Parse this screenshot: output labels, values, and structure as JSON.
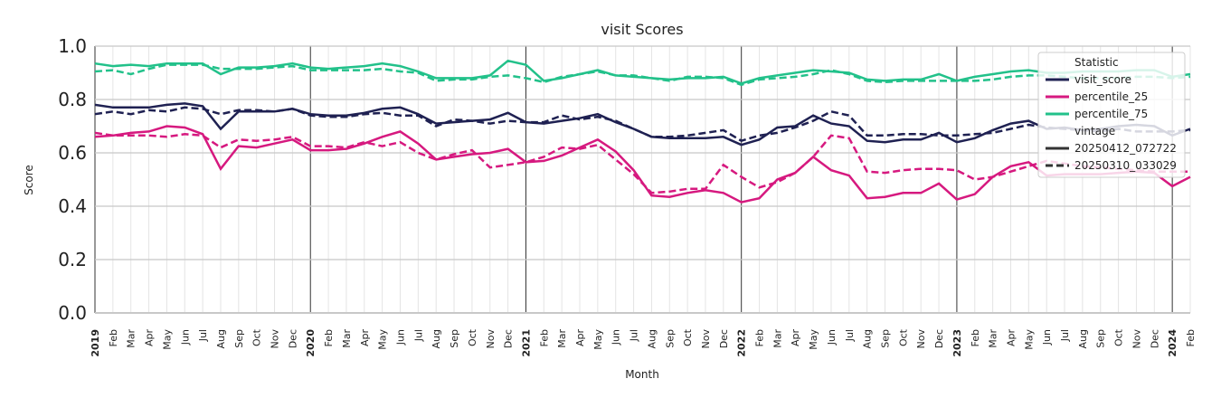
{
  "chart_data": {
    "type": "line",
    "title": "visit Scores",
    "x_label": "Month",
    "y_label": "Score",
    "categories": [
      "2019",
      "Feb",
      "Mar",
      "Apr",
      "May",
      "Jun",
      "Jul",
      "Aug",
      "Sep",
      "Oct",
      "Nov",
      "Dec",
      "2020",
      "Feb",
      "Mar",
      "Apr",
      "May",
      "Jun",
      "Jul",
      "Aug",
      "Sep",
      "Oct",
      "Nov",
      "Dec",
      "2021",
      "Feb",
      "Mar",
      "Apr",
      "May",
      "Jun",
      "Jul",
      "Aug",
      "Sep",
      "Oct",
      "Nov",
      "Dec",
      "2022",
      "Feb",
      "Mar",
      "Apr",
      "May",
      "Jun",
      "Jul",
      "Aug",
      "Sep",
      "Oct",
      "Nov",
      "Dec",
      "2023",
      "Feb",
      "Mar",
      "Apr",
      "May",
      "Jun",
      "Jul",
      "Aug",
      "Sep",
      "Oct",
      "Nov",
      "Dec",
      "2024",
      "Feb"
    ],
    "ylim": [
      0,
      1
    ],
    "yticks": [
      {
        "value": 0,
        "label": "0.0"
      },
      {
        "value": 0.2,
        "label": "0.2"
      },
      {
        "value": 0.4,
        "label": "0.4"
      },
      {
        "value": 0.6,
        "label": "0.6"
      },
      {
        "value": 0.8,
        "label": "0.8"
      },
      {
        "value": 1,
        "label": "1.0"
      }
    ],
    "grid": true,
    "legend": {
      "position": "upper right",
      "statistic_title": "Statistic",
      "vintage_title": "vintage"
    },
    "statistics": [
      {
        "name": "visit_score",
        "color": "#1f2152"
      },
      {
        "name": "percentile_25",
        "color": "#d6197f"
      },
      {
        "name": "percentile_75",
        "color": "#22c18a"
      }
    ],
    "vintages": [
      {
        "name": "20250412_072722",
        "dash": "solid"
      },
      {
        "name": "20250310_033029",
        "dash": "dashed"
      }
    ],
    "series": [
      {
        "statistic": "visit_score",
        "vintage": "20250412_072722",
        "values": [
          0.78,
          0.77,
          0.77,
          0.77,
          0.78,
          0.785,
          0.775,
          0.69,
          0.755,
          0.755,
          0.755,
          0.765,
          0.745,
          0.74,
          0.74,
          0.75,
          0.765,
          0.77,
          0.745,
          0.71,
          0.715,
          0.72,
          0.725,
          0.75,
          0.715,
          0.71,
          0.72,
          0.73,
          0.745,
          0.715,
          0.69,
          0.66,
          0.655,
          0.655,
          0.655,
          0.66,
          0.63,
          0.65,
          0.695,
          0.7,
          0.74,
          0.71,
          0.7,
          0.645,
          0.64,
          0.65,
          0.65,
          0.675,
          0.64,
          0.655,
          0.685,
          0.71,
          0.72,
          0.69,
          0.695,
          0.685,
          0.69,
          0.7,
          0.705,
          0.7,
          0.665,
          0.69
        ]
      },
      {
        "statistic": "visit_score",
        "vintage": "20250310_033029",
        "values": [
          0.745,
          0.755,
          0.745,
          0.76,
          0.755,
          0.77,
          0.765,
          0.745,
          0.76,
          0.76,
          0.755,
          0.765,
          0.74,
          0.735,
          0.735,
          0.745,
          0.75,
          0.74,
          0.74,
          0.7,
          0.725,
          0.72,
          0.71,
          0.72,
          0.715,
          0.715,
          0.74,
          0.725,
          0.735,
          0.72,
          0.69,
          0.66,
          0.66,
          0.665,
          0.675,
          0.685,
          0.645,
          0.665,
          0.675,
          0.695,
          0.72,
          0.755,
          0.74,
          0.665,
          0.665,
          0.67,
          0.67,
          0.665,
          0.665,
          0.67,
          0.675,
          0.69,
          0.705,
          0.695,
          0.69,
          0.685,
          0.68,
          0.69,
          0.68,
          0.68,
          0.68,
          0.685
        ]
      },
      {
        "statistic": "percentile_25",
        "vintage": "20250412_072722",
        "values": [
          0.66,
          0.665,
          0.675,
          0.68,
          0.7,
          0.695,
          0.67,
          0.54,
          0.625,
          0.62,
          0.635,
          0.65,
          0.61,
          0.61,
          0.615,
          0.635,
          0.66,
          0.68,
          0.635,
          0.575,
          0.585,
          0.595,
          0.6,
          0.615,
          0.565,
          0.57,
          0.59,
          0.62,
          0.65,
          0.605,
          0.535,
          0.44,
          0.435,
          0.45,
          0.46,
          0.45,
          0.415,
          0.43,
          0.5,
          0.525,
          0.585,
          0.535,
          0.515,
          0.43,
          0.435,
          0.45,
          0.45,
          0.485,
          0.425,
          0.445,
          0.51,
          0.55,
          0.565,
          0.515,
          0.52,
          0.52,
          0.52,
          0.525,
          0.53,
          0.525,
          0.475,
          0.51
        ]
      },
      {
        "statistic": "percentile_25",
        "vintage": "20250310_033029",
        "values": [
          0.675,
          0.665,
          0.665,
          0.665,
          0.66,
          0.67,
          0.665,
          0.62,
          0.65,
          0.645,
          0.65,
          0.66,
          0.625,
          0.625,
          0.62,
          0.64,
          0.625,
          0.64,
          0.6,
          0.575,
          0.595,
          0.61,
          0.545,
          0.555,
          0.565,
          0.585,
          0.62,
          0.615,
          0.63,
          0.575,
          0.52,
          0.45,
          0.455,
          0.465,
          0.465,
          0.555,
          0.51,
          0.47,
          0.49,
          0.525,
          0.585,
          0.665,
          0.655,
          0.53,
          0.525,
          0.535,
          0.54,
          0.54,
          0.535,
          0.5,
          0.51,
          0.53,
          0.55,
          0.57,
          0.56,
          0.55,
          0.545,
          0.54,
          0.535,
          0.53,
          0.53,
          0.53
        ]
      },
      {
        "statistic": "percentile_75",
        "vintage": "20250412_072722",
        "values": [
          0.935,
          0.925,
          0.93,
          0.925,
          0.935,
          0.935,
          0.935,
          0.895,
          0.92,
          0.92,
          0.925,
          0.935,
          0.92,
          0.915,
          0.92,
          0.925,
          0.935,
          0.925,
          0.905,
          0.88,
          0.88,
          0.88,
          0.89,
          0.945,
          0.93,
          0.87,
          0.88,
          0.895,
          0.91,
          0.89,
          0.885,
          0.88,
          0.875,
          0.88,
          0.88,
          0.885,
          0.86,
          0.88,
          0.89,
          0.9,
          0.91,
          0.905,
          0.9,
          0.875,
          0.87,
          0.875,
          0.875,
          0.895,
          0.87,
          0.885,
          0.895,
          0.905,
          0.91,
          0.9,
          0.9,
          0.905,
          0.905,
          0.905,
          0.91,
          0.91,
          0.885,
          0.895
        ]
      },
      {
        "statistic": "percentile_75",
        "vintage": "20250310_033029",
        "values": [
          0.905,
          0.91,
          0.895,
          0.915,
          0.93,
          0.93,
          0.93,
          0.915,
          0.915,
          0.915,
          0.92,
          0.925,
          0.91,
          0.91,
          0.91,
          0.91,
          0.915,
          0.905,
          0.9,
          0.87,
          0.875,
          0.875,
          0.885,
          0.89,
          0.88,
          0.865,
          0.885,
          0.895,
          0.905,
          0.89,
          0.89,
          0.88,
          0.87,
          0.885,
          0.885,
          0.88,
          0.855,
          0.875,
          0.88,
          0.885,
          0.895,
          0.91,
          0.895,
          0.87,
          0.865,
          0.87,
          0.87,
          0.87,
          0.87,
          0.87,
          0.875,
          0.885,
          0.89,
          0.89,
          0.885,
          0.88,
          0.88,
          0.88,
          0.885,
          0.885,
          0.88,
          0.885
        ]
      }
    ]
  }
}
